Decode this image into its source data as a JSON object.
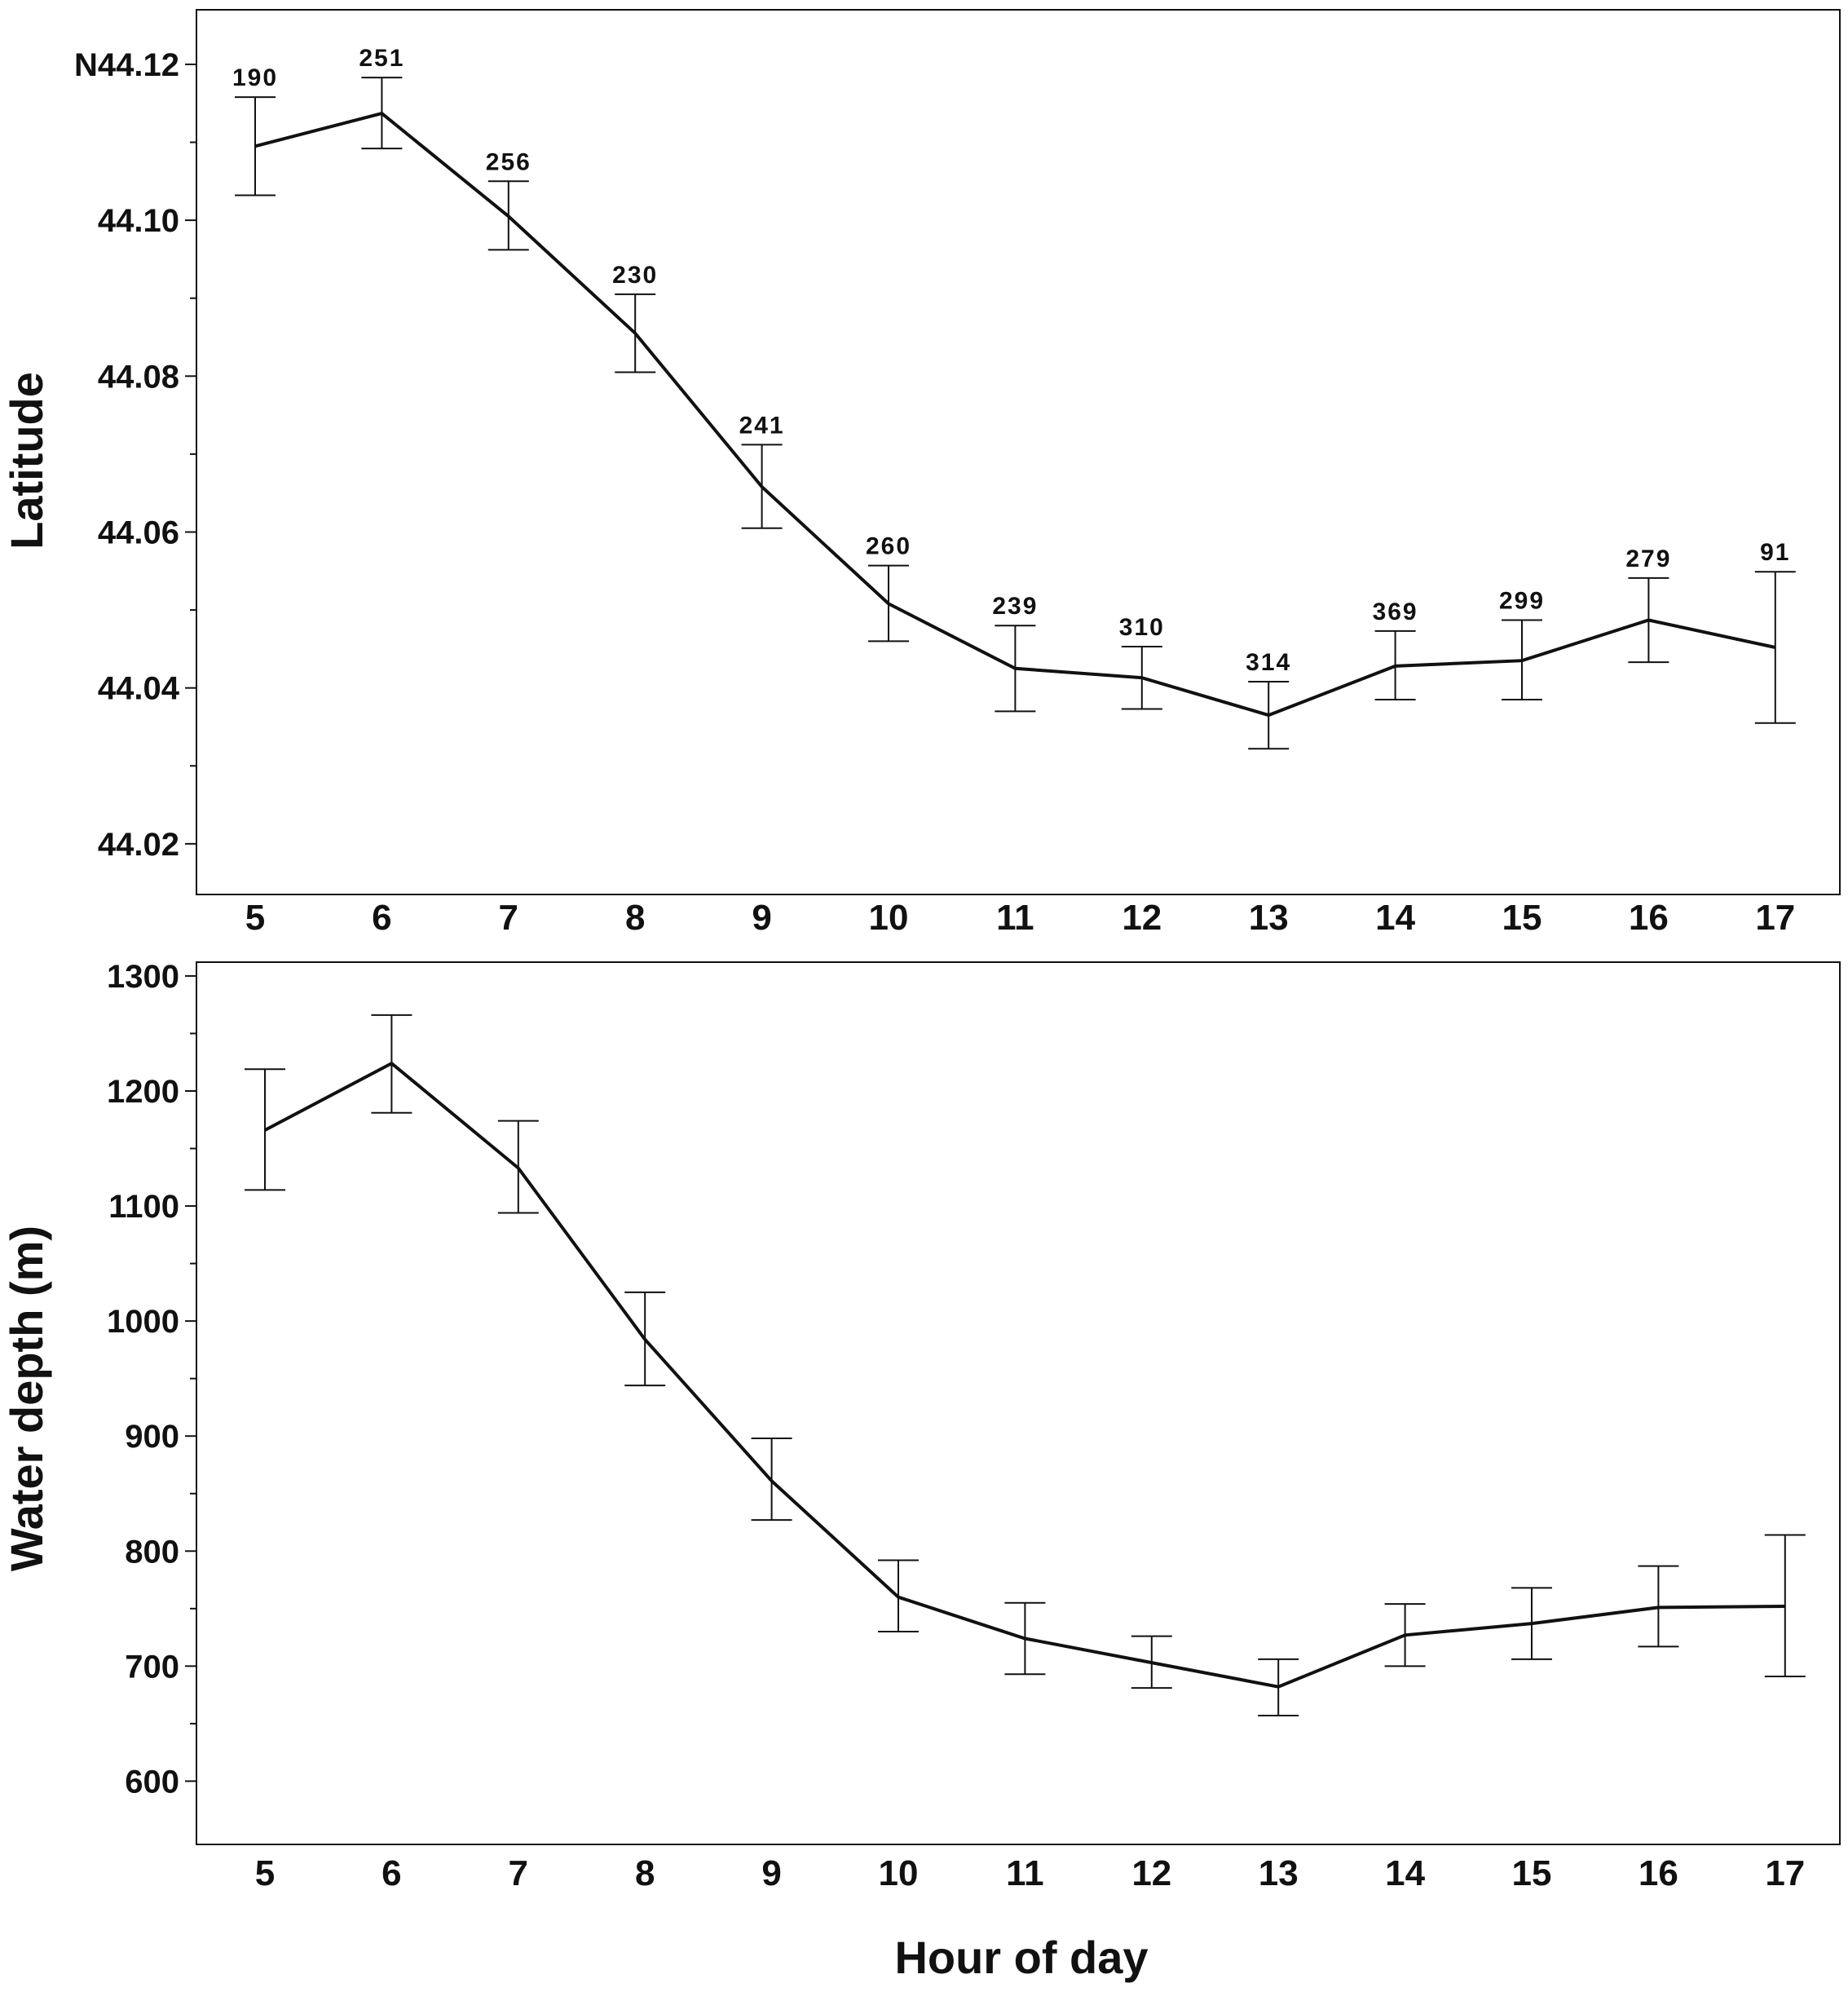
{
  "chart_data": [
    {
      "type": "line",
      "title": "",
      "xlabel": "",
      "ylabel": "Latitude",
      "x": [
        5,
        6,
        7,
        8,
        9,
        10,
        11,
        12,
        13,
        14,
        15,
        16,
        17
      ],
      "x_tick_labels": [
        "5",
        "6",
        "7",
        "8",
        "9",
        "10",
        "11",
        "12",
        "13",
        "14",
        "15",
        "16",
        "17"
      ],
      "y_ticks": [
        44.02,
        44.04,
        44.06,
        44.08,
        44.1,
        44.12
      ],
      "y_tick_labels": [
        "44.02",
        "44.04",
        "44.06",
        "44.08",
        "44.10",
        "N44.12"
      ],
      "y_minor_ticks": [
        44.03,
        44.05,
        44.07,
        44.09,
        44.11
      ],
      "ylim": [
        44.0135,
        44.127
      ],
      "series": [
        {
          "name": "Mean latitude",
          "values": [
            44.1095,
            44.1137,
            44.1005,
            44.0855,
            44.0658,
            44.0508,
            44.0425,
            44.0413,
            44.0365,
            44.0428,
            44.0435,
            44.0487,
            44.0452
          ],
          "error_low": [
            44.1032,
            44.1092,
            44.0962,
            44.0805,
            44.0605,
            44.046,
            44.037,
            44.0373,
            44.0322,
            44.0385,
            44.0385,
            44.0433,
            44.0355
          ],
          "error_high": [
            44.1158,
            44.1183,
            44.105,
            44.0905,
            44.0712,
            44.0557,
            44.048,
            44.0453,
            44.0408,
            44.0473,
            44.0487,
            44.0541,
            44.0549
          ],
          "sample_sizes": [
            "190",
            "251",
            "256",
            "230",
            "241",
            "260",
            "239",
            "310",
            "314",
            "369",
            "299",
            "279",
            "91"
          ]
        }
      ]
    },
    {
      "type": "line",
      "title": "",
      "xlabel": "Hour of day",
      "ylabel": "Water depth (m)",
      "x": [
        5,
        6,
        7,
        8,
        9,
        10,
        11,
        12,
        13,
        14,
        15,
        16,
        17
      ],
      "x_tick_labels": [
        "5",
        "6",
        "7",
        "8",
        "9",
        "10",
        "11",
        "12",
        "13",
        "14",
        "15",
        "16",
        "17"
      ],
      "y_ticks": [
        600,
        700,
        800,
        900,
        1000,
        1100,
        1200,
        1300
      ],
      "y_tick_labels": [
        "600",
        "700",
        "800",
        "900",
        "1000",
        "1100",
        "1200",
        "1300"
      ],
      "y_minor_ticks": [
        650,
        750,
        850,
        950,
        1050,
        1150,
        1250
      ],
      "ylim": [
        545,
        1312
      ],
      "series": [
        {
          "name": "Mean water depth",
          "values": [
            1166,
            1224,
            1133,
            984,
            861,
            760,
            724,
            703,
            682,
            727,
            737,
            751,
            752
          ],
          "error_low": [
            1114,
            1181,
            1094,
            944,
            827,
            730,
            693,
            681,
            657,
            700,
            706,
            717,
            691
          ],
          "error_high": [
            1219,
            1266,
            1174,
            1025,
            898,
            792,
            755,
            726,
            706,
            754,
            768,
            787,
            814
          ]
        }
      ]
    }
  ]
}
